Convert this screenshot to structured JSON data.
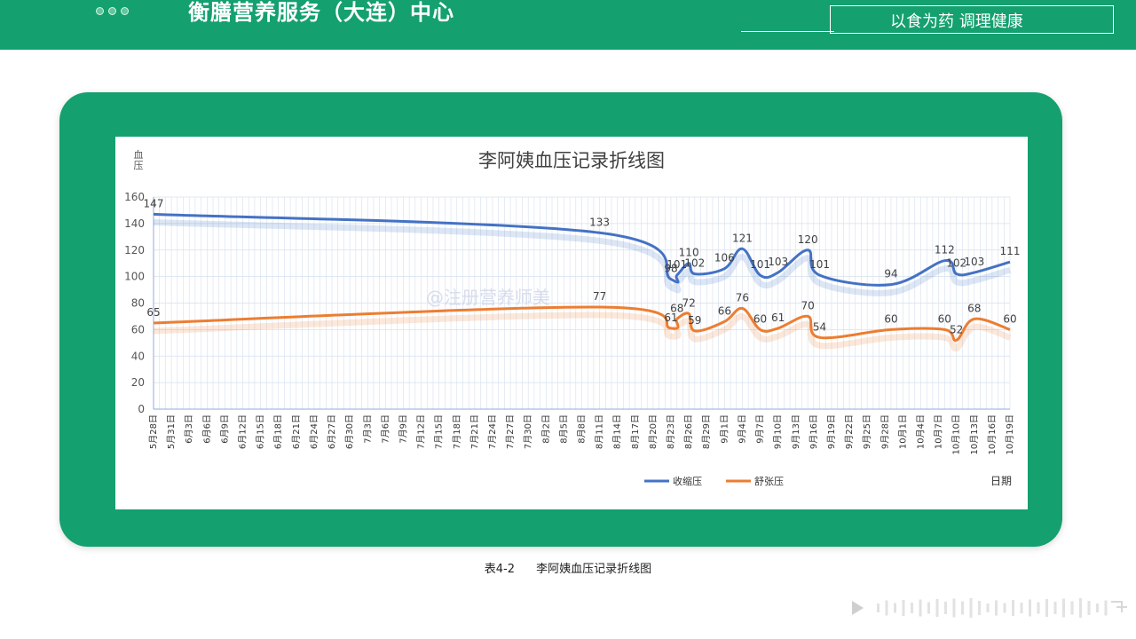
{
  "header": {
    "org_title": "衡膳营养服务（大连）中心",
    "slogan": "以食为药 调理健康"
  },
  "caption": {
    "label": "表4-2",
    "title": "李阿姨血压记录折线图"
  },
  "watermark": "@注册营养师美",
  "colors": {
    "brand_green": "#14a06f",
    "systolic": "#4472c4",
    "diastolic": "#ed7d31"
  },
  "chart_data": {
    "type": "line",
    "title": "李阿姨血压记录折线图",
    "ylabel": "血压",
    "xlabel": "日期",
    "ylim": [
      0,
      160
    ],
    "yticks": [
      0,
      20,
      40,
      60,
      80,
      100,
      120,
      140,
      160
    ],
    "grid": true,
    "legend_position": "bottom",
    "categories": [
      "5月28日",
      "5月31日",
      "6月3日",
      "6月6日",
      "6月9日",
      "6月12日",
      "6月15日",
      "6月18日",
      "6月21日",
      "6月24日",
      "6月27日",
      "6月30日",
      "7月3日",
      "7月6日",
      "7月9日",
      "7月12日",
      "7月15日",
      "7月18日",
      "7月21日",
      "7月24日",
      "7月27日",
      "7月30日",
      "8月2日",
      "8月5日",
      "8月8日",
      "8月11日",
      "8月14日",
      "8月17日",
      "8月20日",
      "8月23日",
      "8月26日",
      "8月29日",
      "9月1日",
      "9月4日",
      "9月7日",
      "9月10日",
      "9月13日",
      "9月16日",
      "9月19日",
      "9月22日",
      "9月25日",
      "9月28日",
      "10月1日",
      "10月4日",
      "10月7日",
      "10月10日",
      "10月13日",
      "10月16日",
      "10月19日"
    ],
    "series": [
      {
        "name": "收缩压",
        "color": "#4472c4",
        "points": [
          {
            "x": "5月28日",
            "y": 147
          },
          {
            "x": "8月11日",
            "y": 133
          },
          {
            "x": "8月23日",
            "y": 98
          },
          {
            "x": "8月24日",
            "y": 101
          },
          {
            "x": "8月26日",
            "y": 110
          },
          {
            "x": "8月27日",
            "y": 102
          },
          {
            "x": "9月1日",
            "y": 106
          },
          {
            "x": "9月4日",
            "y": 121
          },
          {
            "x": "9月7日",
            "y": 101
          },
          {
            "x": "9月10日",
            "y": 103
          },
          {
            "x": "9月15日",
            "y": 120
          },
          {
            "x": "9月17日",
            "y": 101
          },
          {
            "x": "9月29日",
            "y": 94
          },
          {
            "x": "10月8日",
            "y": 112
          },
          {
            "x": "10月10日",
            "y": 102
          },
          {
            "x": "10月13日",
            "y": 103
          },
          {
            "x": "10月19日",
            "y": 111
          }
        ]
      },
      {
        "name": "舒张压",
        "color": "#ed7d31",
        "points": [
          {
            "x": "5月28日",
            "y": 65
          },
          {
            "x": "8月11日",
            "y": 77
          },
          {
            "x": "8月23日",
            "y": 61
          },
          {
            "x": "8月24日",
            "y": 68
          },
          {
            "x": "8月26日",
            "y": 72
          },
          {
            "x": "8月27日",
            "y": 59
          },
          {
            "x": "9月1日",
            "y": 66
          },
          {
            "x": "9月4日",
            "y": 76
          },
          {
            "x": "9月7日",
            "y": 60
          },
          {
            "x": "9月10日",
            "y": 61
          },
          {
            "x": "9月15日",
            "y": 70
          },
          {
            "x": "9月17日",
            "y": 54
          },
          {
            "x": "9月29日",
            "y": 60
          },
          {
            "x": "10月8日",
            "y": 60
          },
          {
            "x": "10月10日",
            "y": 52
          },
          {
            "x": "10月13日",
            "y": 68
          },
          {
            "x": "10月19日",
            "y": 60
          }
        ]
      }
    ]
  }
}
